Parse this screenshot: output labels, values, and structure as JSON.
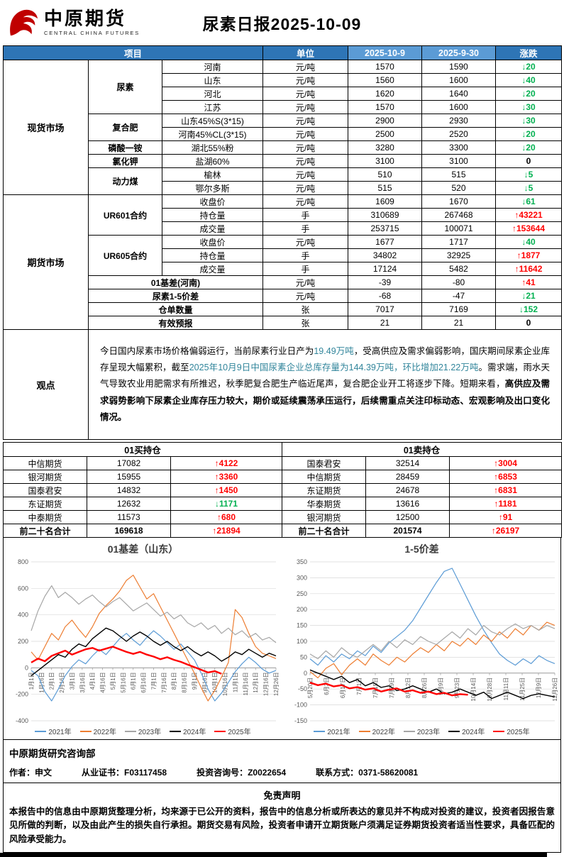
{
  "colors": {
    "header_dark": "#2E75B6",
    "header_light": "#5B9BD5",
    "up": "#FF0000",
    "down": "#00B050",
    "highlight": "#31859B",
    "logo_red": "#C00000"
  },
  "header": {
    "logo_cn": "中原期货",
    "logo_en": "CENTRAL CHINA FUTURES",
    "title": "尿素日报2025-10-09"
  },
  "main_table": {
    "header": {
      "item": "项目",
      "unit": "单位",
      "date1": "2025-10-9",
      "date2": "2025-9-30",
      "change": "涨跌"
    },
    "sections": [
      {
        "name": "现货市场",
        "groups": [
          {
            "name": "尿素",
            "rows": [
              {
                "label": "河南",
                "unit": "元/吨",
                "v1": "1570",
                "v2": "1590",
                "chg": "20",
                "dir": "down"
              },
              {
                "label": "山东",
                "unit": "元/吨",
                "v1": "1560",
                "v2": "1600",
                "chg": "40",
                "dir": "down"
              },
              {
                "label": "河北",
                "unit": "元/吨",
                "v1": "1620",
                "v2": "1640",
                "chg": "20",
                "dir": "down"
              },
              {
                "label": "江苏",
                "unit": "元/吨",
                "v1": "1570",
                "v2": "1600",
                "chg": "30",
                "dir": "down"
              }
            ]
          },
          {
            "name": "复合肥",
            "rows": [
              {
                "label": "山东45%S(3*15)",
                "unit": "元/吨",
                "v1": "2900",
                "v2": "2930",
                "chg": "30",
                "dir": "down"
              },
              {
                "label": "河南45%CL(3*15)",
                "unit": "元/吨",
                "v1": "2500",
                "v2": "2520",
                "chg": "20",
                "dir": "down"
              }
            ]
          },
          {
            "name": "磷酸一铵",
            "rows": [
              {
                "label": "湖北55%粉",
                "unit": "元/吨",
                "v1": "3280",
                "v2": "3300",
                "chg": "20",
                "dir": "down"
              }
            ]
          },
          {
            "name": "氯化钾",
            "rows": [
              {
                "label": "盐湖60%",
                "unit": "元/吨",
                "v1": "3100",
                "v2": "3100",
                "chg": "0",
                "dir": "zero"
              }
            ]
          },
          {
            "name": "动力煤",
            "rows": [
              {
                "label": "榆林",
                "unit": "元/吨",
                "v1": "510",
                "v2": "515",
                "chg": "5",
                "dir": "down"
              },
              {
                "label": "鄂尔多斯",
                "unit": "元/吨",
                "v1": "515",
                "v2": "520",
                "chg": "5",
                "dir": "down"
              }
            ]
          }
        ]
      },
      {
        "name": "期货市场",
        "groups": [
          {
            "name": "UR601合约",
            "rows": [
              {
                "label": "收盘价",
                "unit": "元/吨",
                "v1": "1609",
                "v2": "1670",
                "chg": "61",
                "dir": "down"
              },
              {
                "label": "持仓量",
                "unit": "手",
                "v1": "310689",
                "v2": "267468",
                "chg": "43221",
                "dir": "up"
              },
              {
                "label": "成交量",
                "unit": "手",
                "v1": "253715",
                "v2": "100071",
                "chg": "153644",
                "dir": "up"
              }
            ]
          },
          {
            "name": "UR605合约",
            "rows": [
              {
                "label": "收盘价",
                "unit": "元/吨",
                "v1": "1677",
                "v2": "1717",
                "chg": "40",
                "dir": "down"
              },
              {
                "label": "持仓量",
                "unit": "手",
                "v1": "34802",
                "v2": "32925",
                "chg": "1877",
                "dir": "up"
              },
              {
                "label": "成交量",
                "unit": "手",
                "v1": "17124",
                "v2": "5482",
                "chg": "11642",
                "dir": "up"
              }
            ]
          },
          {
            "name": "01基差(河南)",
            "wide": true,
            "rows": [
              {
                "label": "",
                "unit": "元/吨",
                "v1": "-39",
                "v2": "-80",
                "chg": "41",
                "dir": "up"
              }
            ]
          },
          {
            "name": "尿素1-5价差",
            "wide": true,
            "rows": [
              {
                "label": "",
                "unit": "元/吨",
                "v1": "-68",
                "v2": "-47",
                "chg": "21",
                "dir": "down"
              }
            ]
          },
          {
            "name": "仓单数量",
            "wide": true,
            "rows": [
              {
                "label": "",
                "unit": "张",
                "v1": "7017",
                "v2": "7169",
                "chg": "152",
                "dir": "down"
              }
            ]
          },
          {
            "name": "有效预报",
            "wide": true,
            "rows": [
              {
                "label": "",
                "unit": "张",
                "v1": "21",
                "v2": "21",
                "chg": "0",
                "dir": "zero"
              }
            ]
          }
        ]
      }
    ],
    "viewpoint": {
      "label": "观点",
      "segments": [
        {
          "t": "今日国内尿素市场价格偏弱运行，当前尿素行业日产为"
        },
        {
          "t": "19.49万吨",
          "c": "#31859B"
        },
        {
          "t": "，受高供应及需求偏弱影响，国庆期间尿素企业库存呈现大幅累积，截至"
        },
        {
          "t": "2025年10月9日中国尿素企业总库存量为144.39万吨，环比增加21.22万吨",
          "c": "#31859B"
        },
        {
          "t": "。需求端，雨水天气导致农业用肥需求有所推迟，秋季肥复合肥生产临近尾声，复合肥企业开工将逐步下降。短期来看，"
        },
        {
          "t": "高供应及需求弱势影响下尿素企业库存压力较大，期价或延续震荡承压运行，后续需重点关注印标动态、宏观影响及出口变化情况。",
          "b": true
        }
      ]
    }
  },
  "positions": {
    "left": {
      "title": "01买持仓",
      "rows": [
        {
          "name": "中信期货",
          "value": "17082",
          "chg": "4122",
          "dir": "up"
        },
        {
          "name": "银河期货",
          "value": "15955",
          "chg": "3360",
          "dir": "up"
        },
        {
          "name": "国泰君安",
          "value": "14832",
          "chg": "1450",
          "dir": "up"
        },
        {
          "name": "东证期货",
          "value": "12632",
          "chg": "1171",
          "dir": "down"
        },
        {
          "name": "中泰期货",
          "value": "11573",
          "chg": "680",
          "dir": "up"
        },
        {
          "name": "前二十名合计",
          "value": "169618",
          "chg": "21894",
          "dir": "up",
          "total": true
        }
      ]
    },
    "right": {
      "title": "01卖持仓",
      "rows": [
        {
          "name": "国泰君安",
          "value": "32514",
          "chg": "3004",
          "dir": "up"
        },
        {
          "name": "中信期货",
          "value": "28459",
          "chg": "6853",
          "dir": "up"
        },
        {
          "name": "东证期货",
          "value": "24678",
          "chg": "6831",
          "dir": "up"
        },
        {
          "name": "华泰期货",
          "value": "13616",
          "chg": "1181",
          "dir": "up"
        },
        {
          "name": "银河期货",
          "value": "12500",
          "chg": "91",
          "dir": "up"
        },
        {
          "name": "前二十名合计",
          "value": "201574",
          "chg": "26197",
          "dir": "up",
          "total": true
        }
      ]
    }
  },
  "chart_data": [
    {
      "type": "line",
      "title": "01基差（山东）",
      "ylim": [
        -400,
        800
      ],
      "ytick_step": 200,
      "grid": true,
      "legend_position": "bottom",
      "x_labels": [
        "1月1日",
        "1月16日",
        "2月1日",
        "2月16日",
        "3月1日",
        "3月16日",
        "4月1日",
        "4月16日",
        "5月1日",
        "5月16日",
        "6月1日",
        "6月16日",
        "7月1日",
        "7月16日",
        "8月1日",
        "8月16日",
        "9月1日",
        "9月16日",
        "10月1日",
        "10月16日",
        "11月1日",
        "11月16日",
        "12月1日",
        "12月16日",
        "12月26日"
      ],
      "series": [
        {
          "name": "2021年",
          "color": "#5B9BD5",
          "width": 1.2,
          "values": [
            -20,
            -60,
            -180,
            -250,
            -160,
            -60,
            10,
            60,
            30,
            90,
            140,
            100,
            160,
            220,
            260,
            210,
            170,
            230,
            280,
            240,
            190,
            140,
            180,
            120,
            60,
            -40,
            -160,
            -250,
            -190,
            -110,
            -30,
            30,
            80,
            40,
            -10,
            -40,
            -20
          ]
        },
        {
          "name": "2022年",
          "color": "#ED7D31",
          "width": 1.2,
          "values": [
            120,
            60,
            160,
            260,
            210,
            310,
            360,
            290,
            230,
            310,
            410,
            470,
            520,
            580,
            660,
            700,
            610,
            520,
            560,
            460,
            360,
            260,
            160,
            60,
            -40,
            -150,
            -250,
            -170,
            -70,
            40,
            440,
            380,
            260,
            160,
            110,
            90,
            70
          ]
        },
        {
          "name": "2023年",
          "color": "#A6A6A6",
          "width": 1.2,
          "values": [
            280,
            430,
            540,
            620,
            530,
            570,
            530,
            480,
            520,
            550,
            500,
            460,
            500,
            530,
            480,
            430,
            460,
            490,
            440,
            390,
            420,
            370,
            400,
            340,
            310,
            340,
            290,
            320,
            260,
            300,
            250,
            280,
            230,
            260,
            210,
            230,
            190
          ]
        },
        {
          "name": "2024年",
          "color": "#000000",
          "width": 1.4,
          "values": [
            -60,
            -20,
            20,
            60,
            100,
            80,
            140,
            180,
            160,
            220,
            260,
            300,
            280,
            240,
            200,
            240,
            270,
            240,
            200,
            170,
            200,
            160,
            130,
            160,
            120,
            90,
            120,
            90,
            50,
            80,
            120,
            100,
            140,
            110,
            80,
            110,
            90
          ]
        },
        {
          "name": "2025年",
          "color": "#FF0000",
          "width": 2.4,
          "values": [
            40,
            70,
            50,
            90,
            110,
            130,
            100,
            120,
            140,
            150,
            130,
            145,
            160,
            140,
            120,
            105,
            120,
            100,
            85,
            65,
            80,
            60,
            45,
            25,
            5,
            -15,
            -35,
            -25,
            -45,
            null,
            null,
            null,
            null,
            null,
            null,
            null,
            null
          ]
        }
      ]
    },
    {
      "type": "line",
      "title": "1-5价差",
      "ylim": [
        -150,
        350
      ],
      "ytick_step": 50,
      "grid": true,
      "legend_position": "bottom",
      "x_labels": [
        "5月20日",
        "6月3日",
        "6月17日",
        "7月1日",
        "7月15日",
        "7月29日",
        "8月12日",
        "8月26日",
        "9月9日",
        "9月23日",
        "10月14日",
        "10月28日",
        "11月11日",
        "11月25日",
        "12月9日",
        "12月26日"
      ],
      "series": [
        {
          "name": "2021年",
          "color": "#5B9BD5",
          "width": 1.2,
          "values": [
            45,
            25,
            55,
            35,
            60,
            45,
            70,
            55,
            85,
            65,
            95,
            115,
            135,
            165,
            205,
            245,
            285,
            320,
            330,
            280,
            230,
            180,
            135,
            95,
            60,
            40,
            25,
            45,
            30,
            55,
            40,
            30
          ]
        },
        {
          "name": "2022年",
          "color": "#ED7D31",
          "width": 1.2,
          "values": [
            5,
            -15,
            15,
            30,
            -5,
            25,
            45,
            25,
            60,
            40,
            25,
            50,
            35,
            60,
            80,
            65,
            90,
            70,
            100,
            85,
            110,
            90,
            120,
            100,
            130,
            110,
            140,
            120,
            150,
            135,
            160,
            150
          ]
        },
        {
          "name": "2023年",
          "color": "#A6A6A6",
          "width": 1.2,
          "values": [
            60,
            45,
            70,
            50,
            80,
            60,
            50,
            70,
            90,
            70,
            100,
            80,
            105,
            90,
            115,
            100,
            90,
            110,
            130,
            110,
            140,
            120,
            150,
            130,
            120,
            140,
            155,
            140,
            150,
            135,
            150,
            140
          ]
        },
        {
          "name": "2024年",
          "color": "#000000",
          "width": 1.4,
          "values": [
            10,
            0,
            -10,
            -20,
            -10,
            -30,
            -20,
            -40,
            -30,
            -45,
            -40,
            -55,
            -50,
            -40,
            -50,
            -60,
            -50,
            -65,
            -60,
            -50,
            -60,
            -70,
            -60,
            -80,
            -70,
            -60,
            -70,
            -80,
            -70,
            -65,
            -70,
            -75
          ]
        },
        {
          "name": "2025年",
          "color": "#FF0000",
          "width": 2.4,
          "values": [
            -30,
            -38,
            -33,
            -42,
            -38,
            -48,
            -44,
            -52,
            -48,
            -58,
            -52,
            -48,
            -58,
            -54,
            -62,
            -58,
            -66,
            -62,
            -70,
            -66,
            -68,
            null,
            null,
            null,
            null,
            null,
            null,
            null,
            null,
            null,
            null,
            null
          ]
        }
      ]
    }
  ],
  "footer": {
    "dept": "中原期货研究咨询部",
    "author": "作者：申文",
    "cert": "从业证书：F03117458",
    "advisory": "投资咨询号：Z0022654",
    "contact": "联系方式：0371-58620081",
    "disclaimer_title": "免责声明",
    "disclaimer_text": "本报告中的信息由中原期货整理分析，均来源于已公开的资料，报告中的信息分析或所表达的意见并不构成对投资的建议，投资者因报告意见所做的判断，以及由此产生的损失自行承担。期货交易有风险，投资者申请开立期货账户须满足证券期货投资者适当性要求，具备匹配的风险承受能力。"
  }
}
